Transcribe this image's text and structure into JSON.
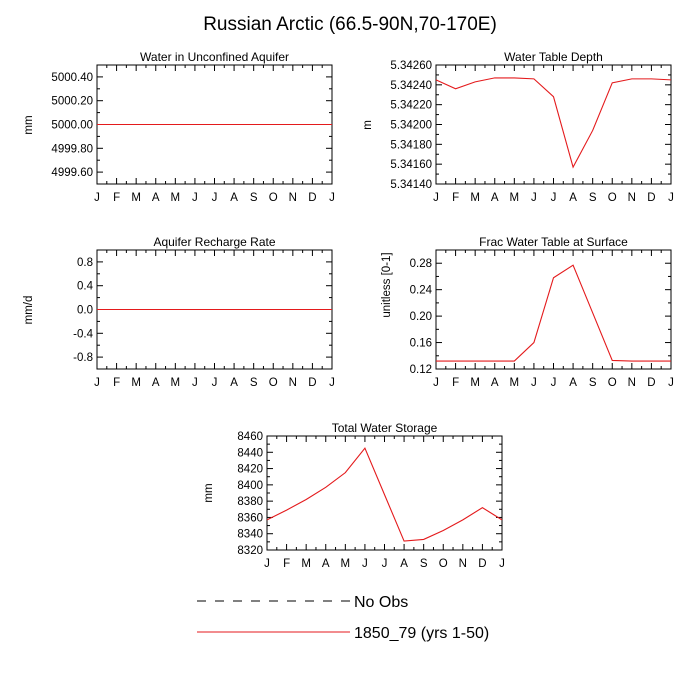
{
  "figure": {
    "title": "Russian Arctic (66.5-90N,70-170E)"
  },
  "colors": {
    "model": "#e41a1c",
    "obs": "#000000",
    "axis": "#000000"
  },
  "chart_data": [
    {
      "type": "line",
      "title": "Water in Unconfined Aquifer",
      "xlabel": "",
      "ylabel": "mm",
      "categories": [
        "J",
        "F",
        "M",
        "A",
        "M",
        "J",
        "J",
        "A",
        "S",
        "O",
        "N",
        "D",
        "J"
      ],
      "ylim": [
        4999.5,
        5000.5
      ],
      "yticks": [
        "5000.40",
        "5000.20",
        "5000.00",
        "4999.80",
        "4999.60"
      ],
      "ytick_values": [
        5000.4,
        5000.2,
        5000.0,
        4999.8,
        4999.6
      ],
      "series": [
        {
          "name": "1850_79 (yrs 1-50)",
          "values": [
            5000,
            5000,
            5000,
            5000,
            5000,
            5000,
            5000,
            5000,
            5000,
            5000,
            5000,
            5000,
            5000
          ]
        }
      ]
    },
    {
      "type": "line",
      "title": "Water Table Depth",
      "xlabel": "",
      "ylabel": "m",
      "categories": [
        "J",
        "F",
        "M",
        "A",
        "M",
        "J",
        "J",
        "A",
        "S",
        "O",
        "N",
        "D",
        "J"
      ],
      "ylim": [
        5.3414,
        5.3426
      ],
      "yticks": [
        "5.34260",
        "5.34240",
        "5.34220",
        "5.34200",
        "5.34180",
        "5.34160",
        "5.34140"
      ],
      "ytick_values": [
        5.3426,
        5.3424,
        5.3422,
        5.342,
        5.3418,
        5.3416,
        5.3414
      ],
      "series": [
        {
          "name": "1850_79 (yrs 1-50)",
          "values": [
            5.34245,
            5.34236,
            5.34243,
            5.34247,
            5.34247,
            5.34246,
            5.34228,
            5.34157,
            5.34194,
            5.34242,
            5.34246,
            5.34246,
            5.34245
          ]
        }
      ]
    },
    {
      "type": "line",
      "title": "Aquifer Recharge Rate",
      "xlabel": "",
      "ylabel": "mm/d",
      "categories": [
        "J",
        "F",
        "M",
        "A",
        "M",
        "J",
        "J",
        "A",
        "S",
        "O",
        "N",
        "D",
        "J"
      ],
      "ylim": [
        -1.0,
        1.0
      ],
      "yticks": [
        "0.8",
        "0.4",
        "0.0",
        "-0.4",
        "-0.8"
      ],
      "ytick_values": [
        0.8,
        0.4,
        0.0,
        -0.4,
        -0.8
      ],
      "series": [
        {
          "name": "1850_79 (yrs 1-50)",
          "values": [
            0,
            0,
            0,
            0,
            0,
            0,
            0,
            0,
            0,
            0,
            0,
            0,
            0
          ]
        }
      ]
    },
    {
      "type": "line",
      "title": "Frac Water Table at Surface",
      "xlabel": "",
      "ylabel": "unitless [0-1]",
      "categories": [
        "J",
        "F",
        "M",
        "A",
        "M",
        "J",
        "J",
        "A",
        "S",
        "O",
        "N",
        "D",
        "J"
      ],
      "ylim": [
        0.12,
        0.3
      ],
      "yticks": [
        "0.28",
        "0.24",
        "0.20",
        "0.16",
        "0.12"
      ],
      "ytick_values": [
        0.28,
        0.24,
        0.2,
        0.16,
        0.12
      ],
      "series": [
        {
          "name": "1850_79 (yrs 1-50)",
          "values": [
            0.132,
            0.132,
            0.132,
            0.132,
            0.132,
            0.16,
            0.258,
            0.277,
            0.205,
            0.133,
            0.132,
            0.132,
            0.132
          ]
        }
      ]
    },
    {
      "type": "line",
      "title": "Total Water Storage",
      "xlabel": "",
      "ylabel": "mm",
      "categories": [
        "J",
        "F",
        "M",
        "A",
        "M",
        "J",
        "J",
        "A",
        "S",
        "O",
        "N",
        "D",
        "J"
      ],
      "ylim": [
        8320,
        8460
      ],
      "yticks": [
        "8460",
        "8440",
        "8420",
        "8400",
        "8380",
        "8360",
        "8340",
        "8320"
      ],
      "ytick_values": [
        8460,
        8440,
        8420,
        8400,
        8380,
        8360,
        8340,
        8320
      ],
      "series": [
        {
          "name": "1850_79 (yrs 1-50)",
          "values": [
            8357,
            8369,
            8382,
            8397,
            8415,
            8445,
            8388,
            8331,
            8333,
            8344,
            8357,
            8372,
            8357
          ]
        }
      ]
    }
  ],
  "legend": {
    "entries": [
      {
        "label": "No Obs",
        "style": "dashed",
        "color": "#000000"
      },
      {
        "label": "1850_79 (yrs 1-50)",
        "style": "solid",
        "color": "#e41a1c"
      }
    ]
  }
}
